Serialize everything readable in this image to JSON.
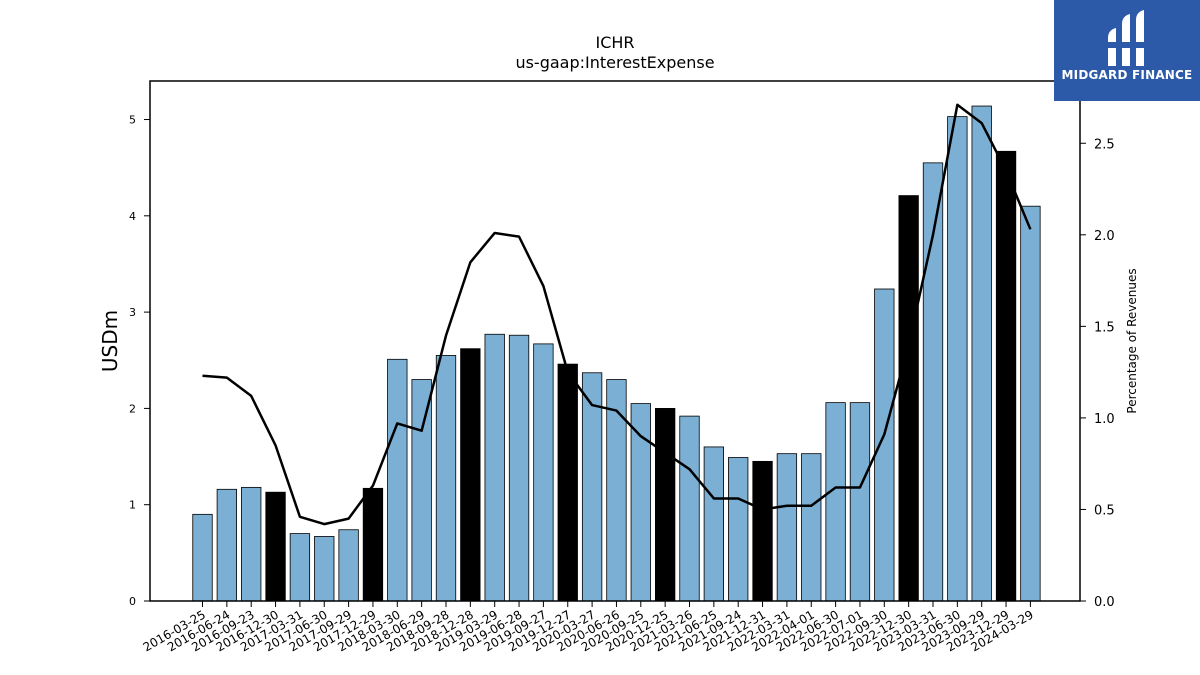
{
  "chart_data": {
    "type": "bar",
    "title": "ICHR",
    "subtitle": "us-gaap:InterestExpense",
    "ylabel": "USDm",
    "y2label": "Percentage of Revenues",
    "ylim": [
      0,
      5.4
    ],
    "y2lim": [
      0,
      2.84
    ],
    "yticks": [
      "0",
      "1",
      "2",
      "3",
      "4",
      "5"
    ],
    "y2ticks": [
      "0.0",
      "0.5",
      "1.0",
      "1.5",
      "2.0",
      "2.5"
    ],
    "grid": false,
    "categories": [
      "2016-03-25",
      "2016-06-24",
      "2016-09-23",
      "2016-12-30",
      "2017-03-31",
      "2017-06-30",
      "2017-09-29",
      "2017-12-29",
      "2018-03-30",
      "2018-06-29",
      "2018-09-28",
      "2018-12-28",
      "2019-03-29",
      "2019-06-28",
      "2019-09-27",
      "2019-12-27",
      "2020-03-27",
      "2020-06-26",
      "2020-09-25",
      "2020-12-25",
      "2021-03-26",
      "2021-06-25",
      "2021-09-24",
      "2021-12-31",
      "2022-03-31",
      "2022-04-01",
      "2022-06-30",
      "2022-07-01",
      "2022-09-30",
      "2022-12-30",
      "2023-03-31",
      "2023-06-30",
      "2023-09-29",
      "2023-12-29",
      "2024-03-29"
    ],
    "series": [
      {
        "type": "bar",
        "values": [
          0.9,
          1.16,
          1.18,
          1.13,
          0.7,
          0.67,
          0.74,
          1.17,
          2.51,
          2.3,
          2.55,
          2.62,
          2.77,
          2.76,
          2.67,
          2.46,
          2.37,
          2.3,
          2.05,
          2.0,
          1.92,
          1.6,
          1.49,
          1.45,
          1.53,
          1.53,
          2.06,
          2.06,
          3.24,
          4.21,
          4.55,
          5.03,
          5.14,
          4.67,
          4.1
        ],
        "highlight": [
          false,
          false,
          false,
          true,
          false,
          false,
          false,
          true,
          false,
          false,
          false,
          true,
          false,
          false,
          false,
          true,
          false,
          false,
          false,
          true,
          false,
          false,
          false,
          true,
          false,
          false,
          false,
          false,
          false,
          true,
          false,
          false,
          false,
          true,
          false
        ]
      },
      {
        "type": "line",
        "axis": "right",
        "values": [
          1.23,
          1.22,
          1.12,
          0.85,
          0.46,
          0.42,
          0.45,
          0.63,
          0.97,
          0.93,
          1.45,
          1.85,
          2.01,
          1.99,
          1.72,
          1.25,
          1.07,
          1.04,
          0.9,
          0.81,
          0.72,
          0.56,
          0.56,
          0.5,
          0.52,
          0.52,
          0.62,
          0.62,
          0.91,
          1.4,
          2.0,
          2.71,
          2.61,
          2.35,
          2.03
        ]
      }
    ],
    "colors": {
      "bar": "#7bafd4",
      "highlight": "#000000",
      "line": "#000000"
    }
  },
  "logo": {
    "brand": "MIDGARD FINANCE",
    "bg": "#2d5aa8"
  }
}
